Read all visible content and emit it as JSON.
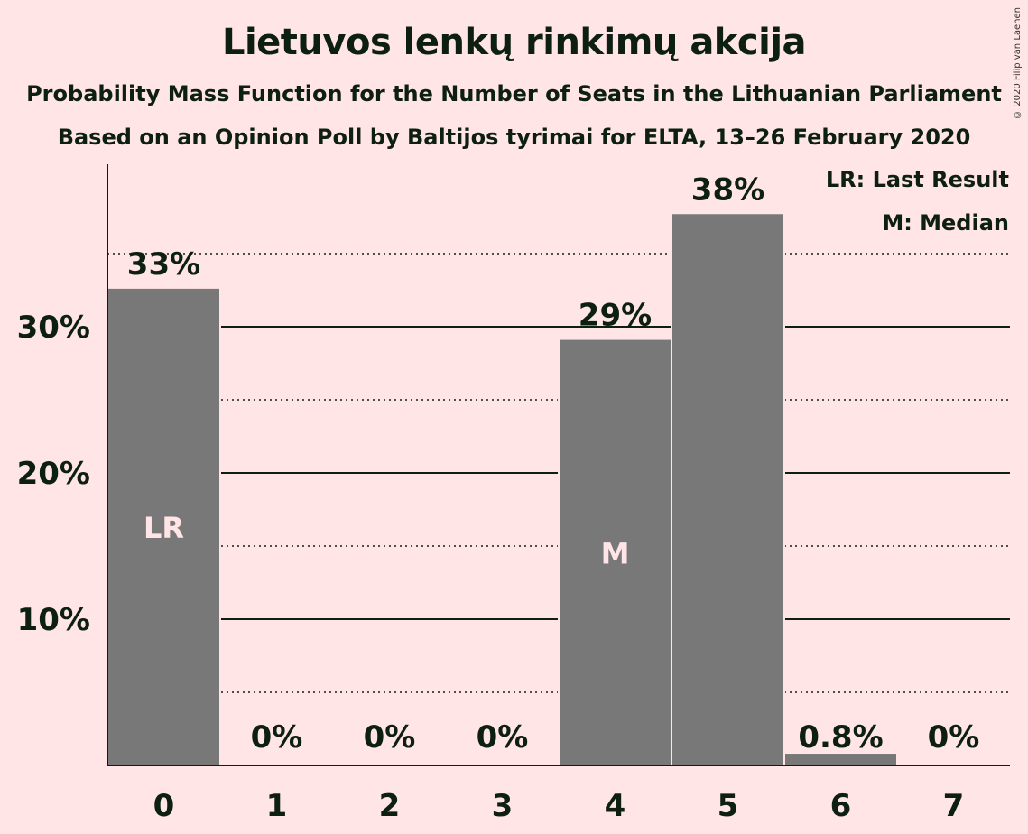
{
  "header": {
    "title": "Lietuvos lenkų rinkimų akcija",
    "subtitle1": "Probability Mass Function for the Number of Seats in the Lithuanian Parliament",
    "subtitle2": "Based on an Opinion Poll by Baltijos tyrimai for ELTA, 13–26 February 2020",
    "copyright": "© 2020 Filip van Laenen"
  },
  "legend": {
    "last_result": "LR: Last Result",
    "median": "M: Median"
  },
  "colors": {
    "background": "#FFE5E5",
    "bar": "#787878",
    "text": "#0D1F12",
    "marker_text": "#FFE5E5"
  },
  "chart_data": {
    "type": "bar",
    "categories": [
      "0",
      "1",
      "2",
      "3",
      "4",
      "5",
      "6",
      "7"
    ],
    "values": [
      32.6,
      0,
      0,
      0,
      29.1,
      37.7,
      0.8,
      0
    ],
    "value_labels": [
      "33%",
      "0%",
      "0%",
      "0%",
      "29%",
      "38%",
      "0.8%",
      "0%"
    ],
    "markers": [
      {
        "category": "0",
        "label": "LR"
      },
      {
        "category": "4",
        "label": "M"
      }
    ],
    "ylim": [
      0,
      41
    ],
    "yticks": [
      10,
      20,
      30
    ],
    "ytick_labels": [
      "10%",
      "20%",
      "30%"
    ],
    "minor_gridlines": [
      5,
      15,
      25,
      35
    ],
    "grid": true,
    "legend_position": "top-right",
    "xlabel": "",
    "ylabel": ""
  }
}
